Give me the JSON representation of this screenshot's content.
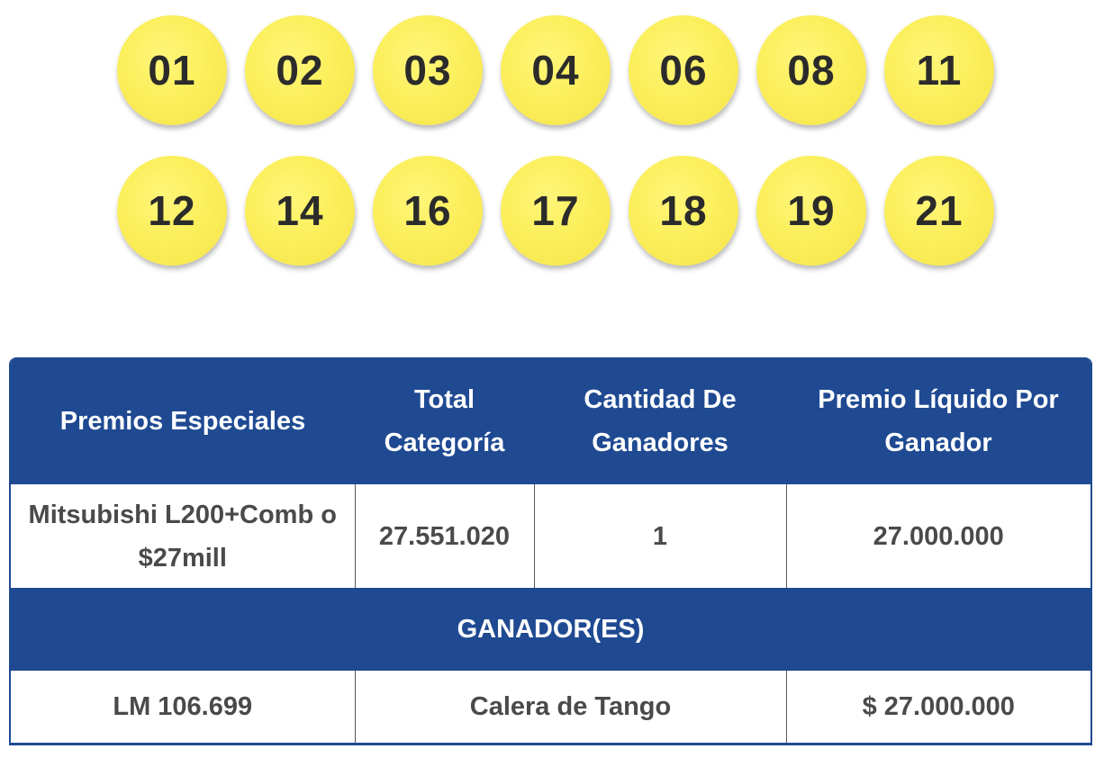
{
  "drawn_numbers": {
    "row1": [
      "01",
      "02",
      "03",
      "04",
      "06",
      "08",
      "11"
    ],
    "row2": [
      "12",
      "14",
      "16",
      "17",
      "18",
      "19",
      "21"
    ]
  },
  "colors": {
    "ball_yellow": "#fbef5c",
    "header_blue": "#1f4a92",
    "cell_text": "#4a4a4a"
  },
  "table": {
    "headers": {
      "col1": "Premios Especiales",
      "col2": "Total Categoría",
      "col3": "Cantidad De Ganadores",
      "col4": "Premio Líquido Por Ganador"
    },
    "prize": {
      "name": "Mitsubishi L200+Comb o $27mill",
      "total": "27.551.020",
      "winners_count": "1",
      "net_prize": "27.000.000"
    },
    "winners_section_label": "GANADOR(ES)",
    "winner": {
      "ticket": "LM 106.699",
      "location": "Calera de Tango",
      "amount": "$ 27.000.000"
    }
  }
}
